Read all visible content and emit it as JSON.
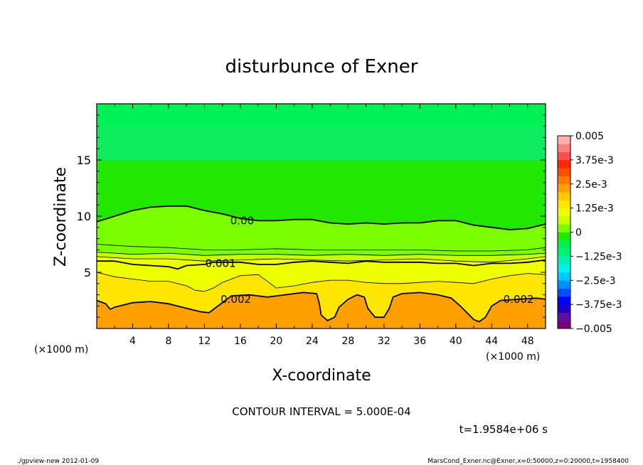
{
  "chart_data": {
    "type": "heatmap",
    "title": "disturbunce of Exner",
    "xlabel": "X-coordinate",
    "ylabel": "Z-coordinate",
    "x_unit_left": "(×1000 m)",
    "x_unit_right": "(×1000 m)",
    "xlim": [
      0,
      50
    ],
    "ylim": [
      0,
      20
    ],
    "x_ticks": [
      4,
      8,
      12,
      16,
      20,
      24,
      28,
      32,
      36,
      40,
      44,
      48
    ],
    "x_tick_labels": [
      "4",
      "8",
      "12",
      "16",
      "20",
      "24",
      "28",
      "32",
      "36",
      "40",
      "44",
      "48"
    ],
    "y_ticks": [
      5,
      10,
      15
    ],
    "y_tick_labels": [
      "5",
      "10",
      "15"
    ],
    "colorbar": {
      "min": -0.005,
      "max": 0.005,
      "labels": [
        "0.005",
        "3.75e-3",
        "2.5e-3",
        "1.25e-3",
        "0",
        "−1.25e-3",
        "−2.5e-3",
        "−3.75e-3",
        "−0.005"
      ],
      "label_values": [
        0.005,
        0.00375,
        0.0025,
        0.00125,
        0,
        -0.00125,
        -0.0025,
        -0.00375,
        -0.005
      ],
      "colors": [
        "#7a007a",
        "#5a10a0",
        "#1e00c8",
        "#0000ff",
        "#0050ff",
        "#0090ff",
        "#00c8ff",
        "#00f0f0",
        "#00f0b4",
        "#00f078",
        "#00f050",
        "#20e800",
        "#7aff00",
        "#c8ff00",
        "#f0ff00",
        "#ffe600",
        "#ffc800",
        "#ffa000",
        "#ff7800",
        "#ff5000",
        "#ff2800",
        "#ff5050",
        "#ff8080",
        "#ffb0b0"
      ]
    },
    "contour_interval_text": "CONTOUR INTERVAL = 5.000E-04",
    "time_text": "t=1.9584e+06 s",
    "contour_labels": [
      {
        "text": "0.00",
        "value": 0.0,
        "x": 16.2,
        "z": 9.6
      },
      {
        "text": "0.001",
        "value": 0.001,
        "x": 13.8,
        "z": 5.8
      },
      {
        "text": "0.002",
        "value": 0.002,
        "x": 15.5,
        "z": 2.6
      },
      {
        "text": "0.002",
        "value": 0.002,
        "x": 47.0,
        "z": 2.6
      }
    ],
    "contours": [
      {
        "value": 0.0,
        "weight": "major",
        "points": [
          [
            0,
            9.5
          ],
          [
            2,
            10
          ],
          [
            4,
            10.5
          ],
          [
            6,
            10.8
          ],
          [
            8,
            10.9
          ],
          [
            10,
            10.9
          ],
          [
            12,
            10.5
          ],
          [
            14,
            10.2
          ],
          [
            16,
            9.8
          ],
          [
            18,
            9.6
          ],
          [
            20,
            9.6
          ],
          [
            22,
            9.7
          ],
          [
            24,
            9.7
          ],
          [
            26,
            9.4
          ],
          [
            28,
            9.3
          ],
          [
            30,
            9.4
          ],
          [
            32,
            9.3
          ],
          [
            34,
            9.4
          ],
          [
            36,
            9.4
          ],
          [
            38,
            9.6
          ],
          [
            40,
            9.6
          ],
          [
            42,
            9.2
          ],
          [
            44,
            9.0
          ],
          [
            46,
            8.8
          ],
          [
            48,
            8.9
          ],
          [
            50,
            9.3
          ]
        ]
      },
      {
        "value": 0.00025,
        "weight": "minor",
        "points": [
          [
            0,
            7.5
          ],
          [
            4,
            7.3
          ],
          [
            8,
            7.2
          ],
          [
            12,
            7.0
          ],
          [
            16,
            7.0
          ],
          [
            20,
            7.1
          ],
          [
            24,
            7.0
          ],
          [
            28,
            7.0
          ],
          [
            32,
            7.0
          ],
          [
            36,
            7.0
          ],
          [
            40,
            6.9
          ],
          [
            44,
            6.9
          ],
          [
            48,
            7.0
          ],
          [
            50,
            7.2
          ]
        ]
      },
      {
        "value": 0.0005,
        "weight": "minor",
        "points": [
          [
            0,
            6.8
          ],
          [
            4,
            6.6
          ],
          [
            8,
            6.7
          ],
          [
            12,
            6.5
          ],
          [
            16,
            6.6
          ],
          [
            20,
            6.6
          ],
          [
            24,
            6.5
          ],
          [
            28,
            6.6
          ],
          [
            32,
            6.5
          ],
          [
            36,
            6.6
          ],
          [
            40,
            6.5
          ],
          [
            44,
            6.5
          ],
          [
            48,
            6.6
          ],
          [
            50,
            6.7
          ]
        ]
      },
      {
        "value": 0.00075,
        "weight": "minor",
        "points": [
          [
            0,
            6.4
          ],
          [
            4,
            6.2
          ],
          [
            8,
            6.2
          ],
          [
            12,
            6.0
          ],
          [
            16,
            6.1
          ],
          [
            20,
            6.2
          ],
          [
            24,
            6.1
          ],
          [
            28,
            6.0
          ],
          [
            32,
            6.1
          ],
          [
            36,
            6.2
          ],
          [
            40,
            6.0
          ],
          [
            44,
            5.9
          ],
          [
            48,
            6.2
          ],
          [
            50,
            6.4
          ]
        ]
      },
      {
        "value": 0.001,
        "weight": "major",
        "points": [
          [
            0,
            6.0
          ],
          [
            2,
            6.0
          ],
          [
            4,
            5.7
          ],
          [
            6,
            5.6
          ],
          [
            8,
            5.5
          ],
          [
            9,
            5.3
          ],
          [
            10,
            5.6
          ],
          [
            12,
            5.7
          ],
          [
            13,
            5.9
          ],
          [
            16,
            5.9
          ],
          [
            18,
            5.7
          ],
          [
            20,
            5.7
          ],
          [
            22,
            5.9
          ],
          [
            24,
            6.0
          ],
          [
            26,
            5.9
          ],
          [
            28,
            5.8
          ],
          [
            30,
            6.0
          ],
          [
            32,
            5.9
          ],
          [
            34,
            5.9
          ],
          [
            36,
            5.9
          ],
          [
            38,
            5.8
          ],
          [
            40,
            5.8
          ],
          [
            42,
            5.6
          ],
          [
            44,
            5.8
          ],
          [
            46,
            5.8
          ],
          [
            48,
            5.9
          ],
          [
            50,
            6.1
          ]
        ]
      },
      {
        "value": 0.0015,
        "weight": "minor",
        "points": [
          [
            0,
            5.0
          ],
          [
            2,
            4.6
          ],
          [
            4,
            4.4
          ],
          [
            6,
            4.2
          ],
          [
            8,
            4.2
          ],
          [
            10,
            3.8
          ],
          [
            11,
            3.4
          ],
          [
            12,
            3.3
          ],
          [
            13,
            3.6
          ],
          [
            14,
            4.1
          ],
          [
            15,
            4.4
          ],
          [
            16,
            4.7
          ],
          [
            18,
            4.8
          ],
          [
            19,
            4.2
          ],
          [
            20,
            3.6
          ],
          [
            22,
            3.8
          ],
          [
            24,
            4.1
          ],
          [
            26,
            4.3
          ],
          [
            28,
            4.3
          ],
          [
            30,
            4.1
          ],
          [
            32,
            4.0
          ],
          [
            34,
            4.0
          ],
          [
            36,
            4.1
          ],
          [
            38,
            4.2
          ],
          [
            40,
            4.1
          ],
          [
            42,
            4.0
          ],
          [
            44,
            4.4
          ],
          [
            46,
            4.7
          ],
          [
            48,
            4.9
          ],
          [
            50,
            4.8
          ]
        ]
      },
      {
        "value": 0.002,
        "weight": "major",
        "points": [
          [
            0,
            2.5
          ],
          [
            1,
            2.2
          ],
          [
            1.5,
            1.7
          ],
          [
            2,
            1.9
          ],
          [
            4,
            2.3
          ],
          [
            6,
            2.4
          ],
          [
            8,
            2.2
          ],
          [
            10,
            1.8
          ],
          [
            11.5,
            1.5
          ],
          [
            12.5,
            1.4
          ],
          [
            13.5,
            2.0
          ],
          [
            15,
            2.9
          ],
          [
            17,
            3.0
          ],
          [
            19,
            2.8
          ],
          [
            21,
            3.0
          ],
          [
            23,
            3.2
          ],
          [
            24.5,
            3.1
          ],
          [
            24.8,
            2.2
          ],
          [
            25,
            1.2
          ],
          [
            25.7,
            0.7
          ],
          [
            26.5,
            1.0
          ],
          [
            27,
            1.9
          ],
          [
            28,
            2.6
          ],
          [
            29,
            3.0
          ],
          [
            29.8,
            2.8
          ],
          [
            30.2,
            1.8
          ],
          [
            31,
            1.0
          ],
          [
            32,
            1.0
          ],
          [
            32.6,
            1.8
          ],
          [
            33,
            2.8
          ],
          [
            34,
            3.1
          ],
          [
            36,
            3.2
          ],
          [
            38,
            3.0
          ],
          [
            39.5,
            2.7
          ],
          [
            40.5,
            2.0
          ],
          [
            41.5,
            1.2
          ],
          [
            42,
            0.8
          ],
          [
            42.6,
            0.6
          ],
          [
            43.3,
            1.0
          ],
          [
            44,
            2.0
          ],
          [
            45,
            2.5
          ],
          [
            47,
            2.6
          ],
          [
            49,
            2.7
          ],
          [
            50,
            2.6
          ]
        ]
      }
    ]
  },
  "footer": {
    "left": "./gpview-new  2012-01-09",
    "right": "MarsCond_Exner.nc@Exner,x=0:50000,z=0:20000,t=1958400"
  }
}
